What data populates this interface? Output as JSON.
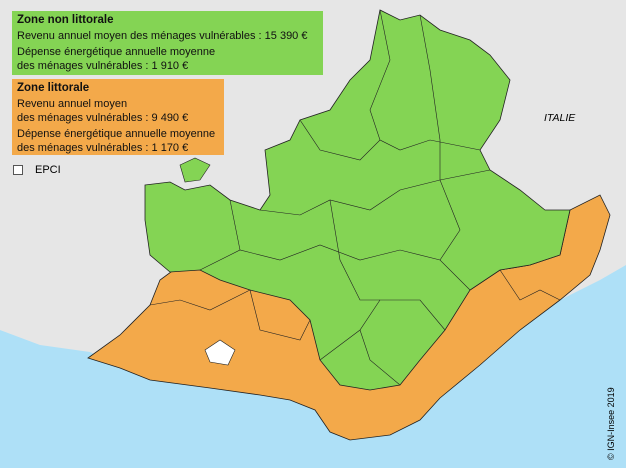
{
  "legend": {
    "non_littoral": {
      "title": "Zone non littorale",
      "revenu": "Revenu annuel moyen des ménages vulnérables : 15 390 €",
      "depense_1": "Dépense énergétique annuelle moyenne",
      "depense_2": "des ménages vulnérables : 1 910 €",
      "color": "#84d454"
    },
    "littoral": {
      "title": "Zone littorale",
      "revenu_1": "Revenu annuel moyen",
      "revenu_2": "des ménages vulnérables : 9 490  €",
      "depense_1": "Dépense énergétique annuelle moyenne",
      "depense_2": "des ménages vulnérables : 1 170 €",
      "color": "#f3a94a"
    },
    "epci_label": "EPCI"
  },
  "map": {
    "country_label": "ITALIE",
    "copyright": "© IGN-Insee 2019",
    "sea_color": "#aee0f7",
    "land_color": "#e6e6e6"
  }
}
